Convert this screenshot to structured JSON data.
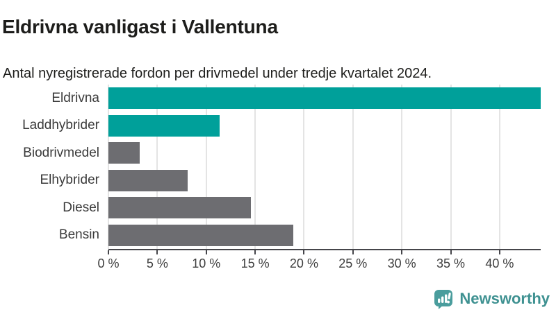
{
  "header": {
    "title": "Eldrivna vanligast i Vallentuna",
    "subtitle": "Antal nyregistrerade fordon per drivmedel under tredje kvartalet 2024."
  },
  "chart_data": {
    "type": "bar",
    "orientation": "horizontal",
    "title": "Eldrivna vanligast i Vallentuna",
    "subtitle": "Antal nyregistrerade fordon per drivmedel under tredje kvartalet 2024.",
    "categories": [
      "Eldrivna",
      "Laddhybrider",
      "Biodrivmedel",
      "Elhybrider",
      "Diesel",
      "Bensin"
    ],
    "values": [
      44.2,
      11.4,
      3.2,
      8.1,
      14.6,
      18.9
    ],
    "unit": "%",
    "xlabel": "",
    "ylabel": "",
    "xlim": [
      0,
      44.2
    ],
    "x_ticks": [
      {
        "value": 0,
        "label": "0 %"
      },
      {
        "value": 5,
        "label": "5 %"
      },
      {
        "value": 10,
        "label": "10 %"
      },
      {
        "value": 15,
        "label": "15 %"
      },
      {
        "value": 20,
        "label": "20 %"
      },
      {
        "value": 25,
        "label": "25 %"
      },
      {
        "value": 30,
        "label": "30 %"
      },
      {
        "value": 35,
        "label": "35 %"
      },
      {
        "value": 40,
        "label": "40 %"
      }
    ],
    "bar_colors": [
      "#00a09a",
      "#00a09a",
      "#6d6d71",
      "#6d6d71",
      "#6d6d71",
      "#6d6d71"
    ],
    "colors": {
      "highlight": "#00a09a",
      "default": "#6d6d71",
      "grid": "#e4e4e4",
      "axis": "#45454a"
    },
    "grid": true,
    "legend_position": "none"
  },
  "branding": {
    "logo_text": "Newsworthy",
    "logo_icon": "newsworthy-bar-chart-bubble-icon",
    "logo_text_color": "#3e9191",
    "logo_icon_color": "#4a9d9d"
  }
}
